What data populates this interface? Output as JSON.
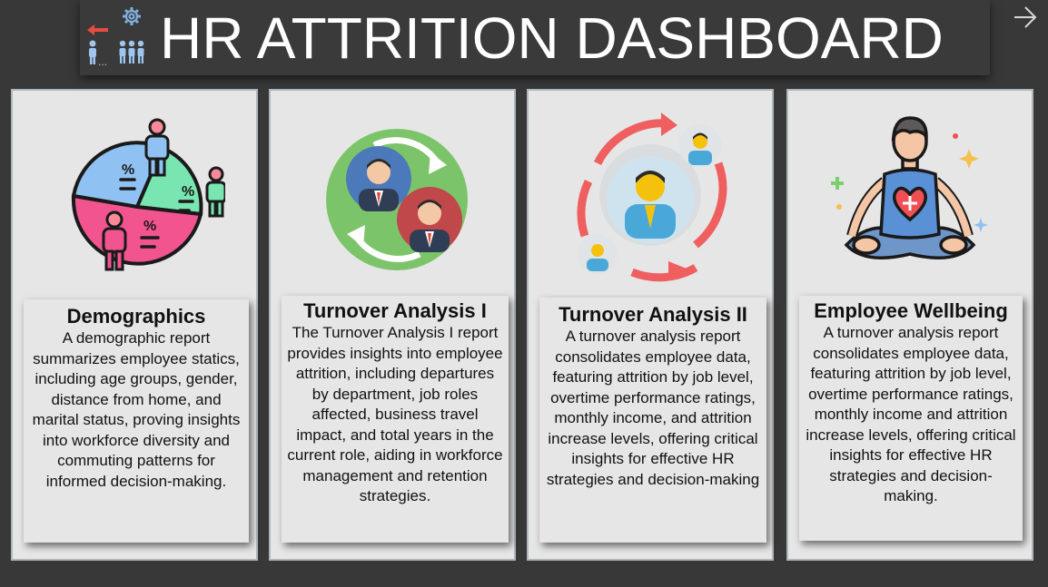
{
  "header": {
    "title": "HR ATTRITION DASHBOARD",
    "icon": "attrition-people-gear-icon",
    "next_icon": "arrow-right-icon"
  },
  "cards": [
    {
      "title": "Demographics",
      "description": "A demographic report summarizes employee statics, including age groups, gender, distance from home, and marital status, proving insights into workforce diversity and commuting patterns for informed decision-making.",
      "icon": "demographics-pie-chart-icon"
    },
    {
      "title": "Turnover Analysis I",
      "description": "The Turnover Analysis I report provides insights into employee attrition, including departures by department, job roles affected, business travel impact, and total years in the current role, aiding in workforce management and retention strategies.",
      "icon": "employee-swap-icon"
    },
    {
      "title": "Turnover Analysis II",
      "description": "A turnover analysis report consolidates employee data, featuring attrition by job level, overtime performance ratings, monthly income, and attrition increase levels, offering critical insights for effective HR strategies and decision-making",
      "icon": "employee-rotation-icon"
    },
    {
      "title": "Employee Wellbeing",
      "description": "A turnover analysis report consolidates employee data, featuring attrition by job level, overtime performance ratings, monthly income and attrition increase levels, offering critical insights for effective HR strategies and decision-making.",
      "icon": "meditation-wellbeing-icon"
    }
  ],
  "colors": {
    "background": "#383838",
    "card": "#e6e6e6",
    "card_border": "#aeb7bd",
    "title_text": "#ffffff"
  }
}
